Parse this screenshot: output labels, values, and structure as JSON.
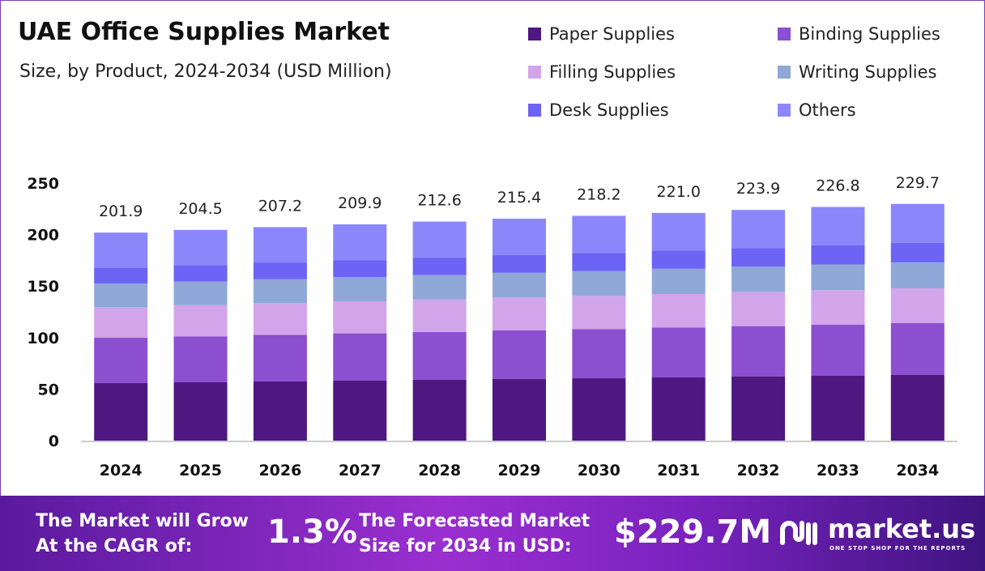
{
  "chart_data": {
    "type": "bar",
    "stacked": true,
    "title": "UAE Office Supplies Market",
    "subtitle": "Size, by Product, 2024-2034 (USD Million)",
    "categories": [
      "2024",
      "2025",
      "2026",
      "2027",
      "2028",
      "2029",
      "2030",
      "2031",
      "2032",
      "2033",
      "2034"
    ],
    "ylim": [
      0,
      250
    ],
    "yticks": [
      0,
      50,
      100,
      150,
      200,
      250
    ],
    "grid": false,
    "legend_position": "top-right",
    "totals": [
      "201.9",
      "204.5",
      "207.2",
      "209.9",
      "212.6",
      "215.4",
      "218.2",
      "221.0",
      "223.9",
      "226.8",
      "229.7"
    ],
    "series": [
      {
        "name": "Paper Supplies",
        "color": "#4f1880",
        "values": [
          55.8,
          56.6,
          57.4,
          58.2,
          59.0,
          59.8,
          60.5,
          61.3,
          62.1,
          62.9,
          63.7
        ]
      },
      {
        "name": "Binding Supplies",
        "color": "#8b4fcf",
        "values": [
          44.0,
          44.6,
          45.3,
          45.9,
          46.5,
          47.2,
          47.8,
          48.4,
          49.0,
          49.7,
          50.3
        ]
      },
      {
        "name": "Filling Supplies",
        "color": "#d2a5ea",
        "values": [
          29.9,
          30.3,
          30.7,
          31.1,
          31.5,
          31.9,
          32.2,
          32.6,
          33.0,
          33.4,
          33.8
        ]
      },
      {
        "name": "Writing Supplies",
        "color": "#8fa8d8",
        "values": [
          22.8,
          23.0,
          23.3,
          23.5,
          23.8,
          24.0,
          24.2,
          24.5,
          24.7,
          25.0,
          25.2
        ]
      },
      {
        "name": "Desk Supplies",
        "color": "#6d63f4",
        "values": [
          15.5,
          15.8,
          16.2,
          16.5,
          16.8,
          17.2,
          17.5,
          17.8,
          18.1,
          18.5,
          18.8
        ]
      },
      {
        "name": "Others",
        "color": "#8b87fb",
        "values": [
          33.9,
          34.2,
          34.3,
          34.7,
          35.0,
          35.3,
          36.0,
          36.4,
          37.0,
          37.3,
          37.9
        ]
      }
    ]
  },
  "footer": {
    "cagr_label": "The Market will Grow At the CAGR of:",
    "cagr_value": "1.3%",
    "forecast_label": "The Forecasted Market Size for 2034 in USD:",
    "forecast_value": "$229.7M",
    "brand": "market.us",
    "tagline": "ONE STOP SHOP FOR THE REPORTS"
  }
}
